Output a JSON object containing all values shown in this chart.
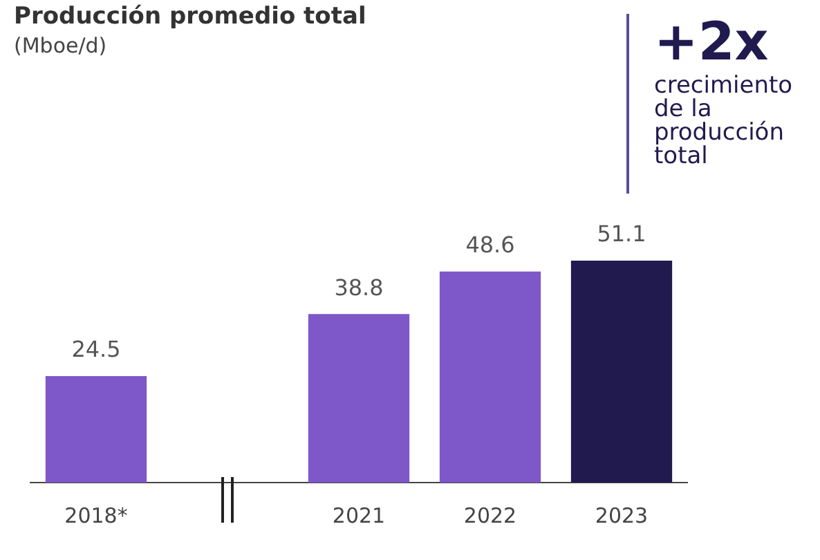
{
  "chart_data": {
    "type": "bar",
    "title": "Producción promedio total",
    "subtitle": "(Mboe/d)",
    "categories": [
      "2018*",
      null,
      "2021",
      "2022",
      "2023"
    ],
    "values": [
      24.5,
      null,
      38.8,
      48.6,
      51.1
    ],
    "colors": [
      "#7e57c8",
      "#7e57c8",
      "#7e57c8",
      "#7e57c8",
      "#211a4f"
    ],
    "data_labels": true,
    "tick_labels": "x",
    "grid": false,
    "legend": false,
    "annotations": [
      "+2x",
      "crecimiento de la producción total"
    ]
  }
}
